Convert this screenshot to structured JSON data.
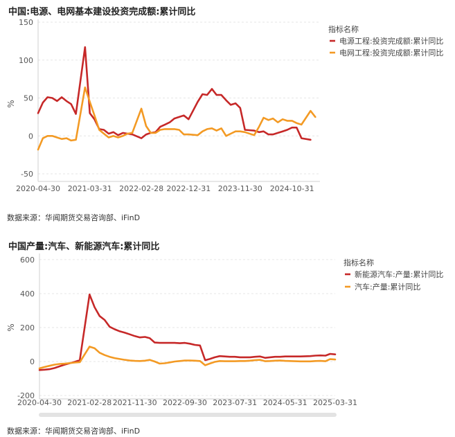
{
  "source_text": "数据来源：华闻期货交易咨询部、iFinD",
  "chart_data": [
    {
      "type": "line",
      "title": "中国:电源、电网基本建设投资完成额:累计同比",
      "xlabel": "",
      "ylabel": "%",
      "ylim": [
        -60,
        150
      ],
      "yticks": [
        150,
        100,
        50,
        0,
        -50
      ],
      "x_range": [
        "2020-04-30",
        "2025-04-30"
      ],
      "xtick_labels": [
        "2020-04-30",
        "2021-03-31",
        "2022-02-28",
        "2022-12-31",
        "2023-11-30",
        "2024-10-31"
      ],
      "grid": true,
      "legend_title": "指标名称",
      "legend_position": "top-right",
      "series": [
        {
          "name": "电源工程:投资完成额:累计同比",
          "color": "#c62828",
          "points": [
            [
              "2020-04-30",
              30
            ],
            [
              "2020-05-31",
              44
            ],
            [
              "2020-06-30",
              51
            ],
            [
              "2020-07-31",
              50
            ],
            [
              "2020-08-31",
              46
            ],
            [
              "2020-09-30",
              51
            ],
            [
              "2020-10-31",
              46
            ],
            [
              "2020-11-30",
              42
            ],
            [
              "2020-12-31",
              29
            ],
            [
              "2021-02-28",
              117
            ],
            [
              "2021-03-31",
              30
            ],
            [
              "2021-04-30",
              22
            ],
            [
              "2021-05-31",
              9
            ],
            [
              "2021-06-30",
              8
            ],
            [
              "2021-07-31",
              3
            ],
            [
              "2021-08-31",
              5
            ],
            [
              "2021-09-30",
              1
            ],
            [
              "2021-10-31",
              4
            ],
            [
              "2021-11-30",
              3
            ],
            [
              "2021-12-31",
              2
            ],
            [
              "2022-02-28",
              -3
            ],
            [
              "2022-03-31",
              2
            ],
            [
              "2022-04-30",
              4
            ],
            [
              "2022-05-31",
              5
            ],
            [
              "2022-06-30",
              12
            ],
            [
              "2022-07-31",
              15
            ],
            [
              "2022-08-31",
              18
            ],
            [
              "2022-09-30",
              23
            ],
            [
              "2022-10-31",
              25
            ],
            [
              "2022-11-30",
              27
            ],
            [
              "2022-12-31",
              22
            ],
            [
              "2023-02-28",
              45
            ],
            [
              "2023-03-31",
              55
            ],
            [
              "2023-04-30",
              54
            ],
            [
              "2023-05-31",
              62
            ],
            [
              "2023-06-30",
              54
            ],
            [
              "2023-07-31",
              54
            ],
            [
              "2023-08-31",
              47
            ],
            [
              "2023-09-30",
              41
            ],
            [
              "2023-10-31",
              43
            ],
            [
              "2023-11-30",
              37
            ],
            [
              "2023-12-31",
              8
            ],
            [
              "2024-02-29",
              7
            ],
            [
              "2024-03-31",
              5
            ],
            [
              "2024-04-30",
              6
            ],
            [
              "2024-05-31",
              2
            ],
            [
              "2024-06-30",
              2
            ],
            [
              "2024-07-31",
              4
            ],
            [
              "2024-08-31",
              6
            ],
            [
              "2024-09-30",
              8
            ],
            [
              "2024-10-31",
              11
            ],
            [
              "2024-11-30",
              11
            ],
            [
              "2024-12-31",
              -3
            ],
            [
              "2025-02-28",
              -5
            ]
          ]
        },
        {
          "name": "电网工程:投资完成额:累计同比",
          "color": "#f39a24",
          "points": [
            [
              "2020-04-30",
              -18
            ],
            [
              "2020-05-31",
              -3
            ],
            [
              "2020-06-30",
              0
            ],
            [
              "2020-07-31",
              0
            ],
            [
              "2020-08-31",
              -2
            ],
            [
              "2020-09-30",
              -4
            ],
            [
              "2020-10-31",
              -3
            ],
            [
              "2020-11-30",
              -6
            ],
            [
              "2020-12-31",
              -5
            ],
            [
              "2021-02-28",
              64
            ],
            [
              "2021-03-31",
              45
            ],
            [
              "2021-04-30",
              27
            ],
            [
              "2021-05-31",
              8
            ],
            [
              "2021-06-30",
              3
            ],
            [
              "2021-07-31",
              -2
            ],
            [
              "2021-08-31",
              0
            ],
            [
              "2021-09-30",
              -2
            ],
            [
              "2021-10-31",
              0
            ],
            [
              "2021-11-30",
              3
            ],
            [
              "2021-12-31",
              4
            ],
            [
              "2022-02-28",
              36
            ],
            [
              "2022-03-31",
              13
            ],
            [
              "2022-04-30",
              4
            ],
            [
              "2022-05-31",
              4
            ],
            [
              "2022-06-30",
              8
            ],
            [
              "2022-07-31",
              9
            ],
            [
              "2022-08-31",
              9
            ],
            [
              "2022-09-30",
              9
            ],
            [
              "2022-10-31",
              8
            ],
            [
              "2022-11-30",
              2
            ],
            [
              "2022-12-31",
              2
            ],
            [
              "2023-02-28",
              1
            ],
            [
              "2023-03-31",
              6
            ],
            [
              "2023-04-30",
              9
            ],
            [
              "2023-05-31",
              10
            ],
            [
              "2023-06-30",
              7
            ],
            [
              "2023-07-31",
              10
            ],
            [
              "2023-08-31",
              0
            ],
            [
              "2023-09-30",
              3
            ],
            [
              "2023-10-31",
              6
            ],
            [
              "2023-11-30",
              6
            ],
            [
              "2023-12-31",
              5
            ],
            [
              "2024-02-29",
              1
            ],
            [
              "2024-03-31",
              12
            ],
            [
              "2024-04-30",
              24
            ],
            [
              "2024-05-31",
              21
            ],
            [
              "2024-06-30",
              23
            ],
            [
              "2024-07-31",
              18
            ],
            [
              "2024-08-31",
              22
            ],
            [
              "2024-09-30",
              20
            ],
            [
              "2024-10-31",
              20
            ],
            [
              "2024-11-30",
              17
            ],
            [
              "2024-12-31",
              15
            ],
            [
              "2025-02-28",
              33
            ],
            [
              "2025-03-31",
              25
            ]
          ]
        }
      ]
    },
    {
      "type": "line",
      "title": "中国产量:汽车、新能源汽车:累计同比",
      "xlabel": "",
      "ylabel": "%",
      "ylim": [
        -220,
        620
      ],
      "yticks": [
        600,
        400,
        200,
        0,
        -200
      ],
      "x_range": [
        "2020-04-30",
        "2025-03-31"
      ],
      "xtick_labels": [
        "2020-04-30",
        "2021-02-28",
        "2021-11-30",
        "2022-09-30",
        "2023-07-31",
        "2024-05-31",
        "2025-03-31"
      ],
      "grid": true,
      "legend_title": "指标名称",
      "legend_position": "top-right",
      "series": [
        {
          "name": "新能源汽车:产量:累计同比",
          "color": "#c62828",
          "points": [
            [
              "2020-04-30",
              -50
            ],
            [
              "2020-05-31",
              -48
            ],
            [
              "2020-06-30",
              -45
            ],
            [
              "2020-07-31",
              -38
            ],
            [
              "2020-08-31",
              -28
            ],
            [
              "2020-09-30",
              -18
            ],
            [
              "2020-10-31",
              -10
            ],
            [
              "2020-11-30",
              -2
            ],
            [
              "2020-12-31",
              8
            ],
            [
              "2021-02-28",
              395
            ],
            [
              "2021-03-31",
              320
            ],
            [
              "2021-04-30",
              268
            ],
            [
              "2021-05-31",
              245
            ],
            [
              "2021-06-30",
              205
            ],
            [
              "2021-07-31",
              190
            ],
            [
              "2021-08-31",
              178
            ],
            [
              "2021-09-30",
              170
            ],
            [
              "2021-10-31",
              160
            ],
            [
              "2021-11-30",
              150
            ],
            [
              "2021-12-31",
              142
            ],
            [
              "2022-01-31",
              145
            ],
            [
              "2022-02-28",
              138
            ],
            [
              "2022-03-31",
              112
            ],
            [
              "2022-04-30",
              110
            ],
            [
              "2022-05-31",
              110
            ],
            [
              "2022-06-30",
              110
            ],
            [
              "2022-07-31",
              110
            ],
            [
              "2022-08-31",
              108
            ],
            [
              "2022-09-30",
              110
            ],
            [
              "2022-10-31",
              105
            ],
            [
              "2022-11-30",
              98
            ],
            [
              "2022-12-31",
              95
            ],
            [
              "2023-01-31",
              8
            ],
            [
              "2023-02-28",
              15
            ],
            [
              "2023-03-31",
              25
            ],
            [
              "2023-04-30",
              32
            ],
            [
              "2023-05-31",
              30
            ],
            [
              "2023-06-30",
              28
            ],
            [
              "2023-07-31",
              28
            ],
            [
              "2023-08-31",
              25
            ],
            [
              "2023-09-30",
              25
            ],
            [
              "2023-10-31",
              25
            ],
            [
              "2023-11-30",
              28
            ],
            [
              "2023-12-31",
              30
            ],
            [
              "2024-01-31",
              22
            ],
            [
              "2024-02-29",
              25
            ],
            [
              "2024-03-31",
              28
            ],
            [
              "2024-04-30",
              28
            ],
            [
              "2024-05-31",
              30
            ],
            [
              "2024-06-30",
              30
            ],
            [
              "2024-07-31",
              30
            ],
            [
              "2024-08-31",
              30
            ],
            [
              "2024-09-30",
              31
            ],
            [
              "2024-10-31",
              32
            ],
            [
              "2024-11-30",
              35
            ],
            [
              "2024-12-31",
              36
            ],
            [
              "2025-01-31",
              35
            ],
            [
              "2025-02-28",
              45
            ],
            [
              "2025-03-31",
              42
            ]
          ]
        },
        {
          "name": "汽车:产量:累计同比",
          "color": "#f39a24",
          "points": [
            [
              "2020-04-30",
              -40
            ],
            [
              "2020-05-31",
              -32
            ],
            [
              "2020-06-30",
              -25
            ],
            [
              "2020-07-31",
              -18
            ],
            [
              "2020-08-31",
              -14
            ],
            [
              "2020-09-30",
              -12
            ],
            [
              "2020-10-31",
              -9
            ],
            [
              "2020-11-30",
              -6
            ],
            [
              "2020-12-31",
              -4
            ],
            [
              "2021-02-28",
              88
            ],
            [
              "2021-03-31",
              78
            ],
            [
              "2021-04-30",
              52
            ],
            [
              "2021-05-31",
              38
            ],
            [
              "2021-06-30",
              28
            ],
            [
              "2021-07-31",
              20
            ],
            [
              "2021-08-31",
              15
            ],
            [
              "2021-09-30",
              10
            ],
            [
              "2021-10-31",
              6
            ],
            [
              "2021-11-30",
              4
            ],
            [
              "2021-12-31",
              3
            ],
            [
              "2022-01-31",
              5
            ],
            [
              "2022-02-28",
              10
            ],
            [
              "2022-03-31",
              0
            ],
            [
              "2022-04-30",
              -12
            ],
            [
              "2022-05-31",
              -10
            ],
            [
              "2022-06-30",
              -5
            ],
            [
              "2022-07-31",
              0
            ],
            [
              "2022-08-31",
              3
            ],
            [
              "2022-09-30",
              6
            ],
            [
              "2022-10-31",
              6
            ],
            [
              "2022-11-30",
              5
            ],
            [
              "2022-12-31",
              3
            ],
            [
              "2023-01-31",
              -22
            ],
            [
              "2023-02-28",
              -12
            ],
            [
              "2023-03-31",
              -2
            ],
            [
              "2023-04-30",
              3
            ],
            [
              "2023-05-31",
              2
            ],
            [
              "2023-06-30",
              2
            ],
            [
              "2023-07-31",
              2
            ],
            [
              "2023-08-31",
              3
            ],
            [
              "2023-09-30",
              3
            ],
            [
              "2023-10-31",
              5
            ],
            [
              "2023-11-30",
              8
            ],
            [
              "2023-12-31",
              10
            ],
            [
              "2024-01-31",
              2
            ],
            [
              "2024-02-29",
              3
            ],
            [
              "2024-03-31",
              5
            ],
            [
              "2024-04-30",
              6
            ],
            [
              "2024-05-31",
              4
            ],
            [
              "2024-06-30",
              3
            ],
            [
              "2024-07-31",
              2
            ],
            [
              "2024-08-31",
              1
            ],
            [
              "2024-09-30",
              1
            ],
            [
              "2024-10-31",
              1
            ],
            [
              "2024-11-30",
              3
            ],
            [
              "2024-12-31",
              4
            ],
            [
              "2025-01-31",
              2
            ],
            [
              "2025-02-28",
              14
            ],
            [
              "2025-03-31",
              12
            ]
          ]
        }
      ]
    }
  ]
}
